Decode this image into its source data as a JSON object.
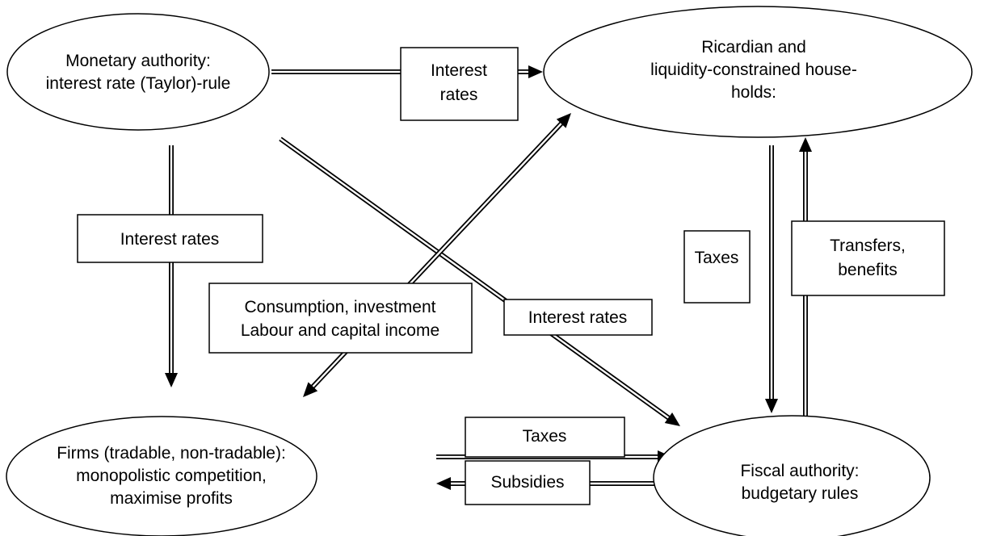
{
  "nodes": [
    {
      "label_lines": [
        "Monetary authority:",
        "interest rate (Taylor)-rule"
      ]
    },
    {
      "label_lines": [
        "Ricardian and",
        "liquidity-constrained house-",
        "holds:"
      ]
    },
    {
      "label_lines": [
        "Firms (tradable, non-tradable):",
        "monopolistic competition,",
        "maximise profits"
      ]
    },
    {
      "label_lines": [
        "Fiscal authority:",
        "budgetary rules"
      ]
    }
  ],
  "edges": [
    {
      "label_lines": [
        "Interest",
        "rates"
      ]
    },
    {
      "label_lines": [
        "Interest rates"
      ]
    },
    {
      "label_lines": [
        "Interest rates"
      ]
    },
    {
      "label_lines": [
        "Consumption, investment",
        "Labour and capital income"
      ]
    },
    {
      "label_lines": [
        "Taxes"
      ]
    },
    {
      "label_lines": [
        "Transfers,",
        "benefits"
      ]
    },
    {
      "label_lines": [
        "Taxes"
      ]
    },
    {
      "label_lines": [
        "Subsidies"
      ]
    }
  ]
}
